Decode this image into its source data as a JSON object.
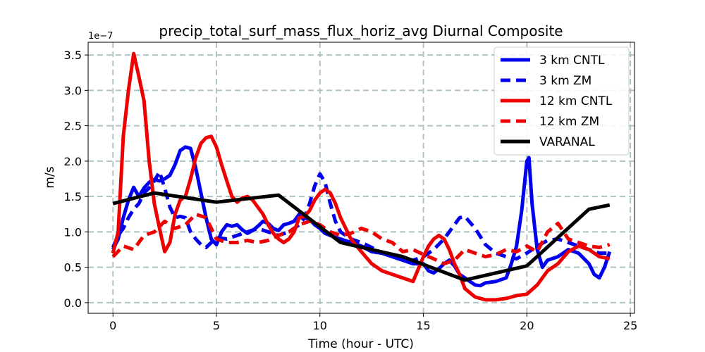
{
  "chart_data": {
    "type": "line",
    "title": "precip_total_surf_mass_flux_horiz_avg Diurnal Composite",
    "xlabel": "Time (hour - UTC)",
    "ylabel": "m/s",
    "y_offset_label": "1e−7",
    "xlim": [
      -1.2,
      25.2
    ],
    "ylim": [
      -0.15,
      3.68
    ],
    "x_ticks": [
      0,
      5,
      10,
      15,
      20,
      25
    ],
    "x_tick_labels": [
      "0",
      "5",
      "10",
      "15",
      "20",
      "25"
    ],
    "y_ticks": [
      0.0,
      0.5,
      1.0,
      1.5,
      2.0,
      2.5,
      3.0,
      3.5
    ],
    "y_tick_labels": [
      "0.0",
      "0.5",
      "1.0",
      "1.5",
      "2.0",
      "2.5",
      "3.0",
      "3.5"
    ],
    "grid": true,
    "legend_position": "top-right",
    "series": [
      {
        "name": "3 km CNTL",
        "color": "#0000ee",
        "dash": "solid",
        "x": [
          0,
          0.25,
          0.5,
          0.75,
          1,
          1.25,
          1.5,
          1.75,
          2,
          2.25,
          2.5,
          2.75,
          3,
          3.25,
          3.5,
          3.75,
          4,
          4.25,
          4.5,
          4.75,
          5,
          5.25,
          5.5,
          5.75,
          6,
          6.25,
          6.5,
          6.75,
          7,
          7.25,
          7.5,
          7.75,
          8,
          8.25,
          8.5,
          8.75,
          9,
          9.25,
          9.5,
          9.75,
          10,
          10.25,
          10.5,
          10.75,
          11,
          11.5,
          12,
          12.5,
          13,
          13.5,
          14,
          14.5,
          15,
          15.25,
          15.5,
          15.75,
          16,
          16.25,
          16.5,
          16.75,
          17,
          17.25,
          17.5,
          17.75,
          18,
          18.5,
          19,
          19.25,
          19.5,
          19.75,
          20,
          20.1,
          20.25,
          20.5,
          20.75,
          21,
          21.5,
          22,
          22.5,
          23,
          23.25,
          23.5,
          23.75,
          24
        ],
        "y": [
          0.75,
          0.9,
          1.2,
          1.45,
          1.63,
          1.5,
          1.62,
          1.7,
          1.74,
          1.72,
          1.75,
          1.8,
          1.95,
          2.15,
          2.2,
          2.18,
          1.9,
          1.55,
          1.2,
          0.9,
          0.82,
          1.0,
          1.1,
          1.08,
          1.1,
          1.03,
          0.98,
          1.02,
          1.08,
          1.15,
          1.12,
          1.05,
          1.02,
          1.1,
          1.12,
          1.15,
          1.25,
          1.2,
          1.18,
          1.1,
          1.05,
          0.98,
          0.95,
          0.92,
          0.9,
          0.85,
          0.8,
          0.72,
          0.7,
          0.65,
          0.6,
          0.55,
          0.55,
          0.45,
          0.42,
          0.48,
          0.55,
          0.6,
          0.52,
          0.4,
          0.35,
          0.3,
          0.25,
          0.24,
          0.28,
          0.3,
          0.35,
          0.55,
          0.8,
          1.3,
          2.0,
          2.05,
          1.4,
          0.75,
          0.5,
          0.6,
          0.65,
          0.75,
          0.7,
          0.55,
          0.4,
          0.35,
          0.5,
          0.72
        ]
      },
      {
        "name": "3 km ZM",
        "color": "#0000ee",
        "dash": "dashed",
        "x": [
          0,
          0.25,
          0.5,
          0.75,
          1,
          1.25,
          1.5,
          1.75,
          2,
          2.25,
          2.5,
          2.75,
          3,
          3.25,
          3.5,
          3.75,
          4,
          4.25,
          4.5,
          4.75,
          5,
          5.5,
          6,
          6.5,
          7,
          7.5,
          8,
          8.5,
          9,
          9.25,
          9.5,
          9.75,
          10,
          10.25,
          10.5,
          10.75,
          11,
          11.5,
          12,
          12.5,
          13,
          13.5,
          14,
          14.5,
          15,
          15.5,
          16,
          16.25,
          16.5,
          16.75,
          17,
          17.5,
          18,
          18.5,
          19,
          19.5,
          20,
          20.5,
          21,
          21.5,
          22,
          22.5,
          23,
          23.5,
          24
        ],
        "y": [
          0.78,
          0.95,
          1.05,
          1.2,
          1.32,
          1.4,
          1.55,
          1.62,
          1.72,
          1.85,
          1.62,
          1.35,
          1.2,
          1.22,
          1.2,
          1.0,
          0.9,
          0.82,
          0.78,
          0.85,
          0.92,
          0.9,
          0.95,
          1.0,
          1.05,
          1.0,
          0.95,
          1.0,
          1.1,
          1.2,
          1.4,
          1.65,
          1.82,
          1.7,
          1.4,
          1.15,
          1.0,
          0.9,
          0.85,
          0.78,
          0.7,
          0.65,
          0.62,
          0.6,
          0.65,
          0.75,
          0.9,
          1.0,
          1.1,
          1.2,
          1.22,
          1.05,
          0.82,
          0.7,
          0.65,
          0.62,
          0.7,
          0.8,
          0.88,
          0.9,
          0.85,
          0.8,
          0.75,
          0.7,
          0.7
        ]
      },
      {
        "name": "12 km CNTL",
        "color": "#ee0000",
        "dash": "solid",
        "x": [
          0,
          0.25,
          0.5,
          0.75,
          1,
          1.25,
          1.5,
          1.75,
          2,
          2.25,
          2.5,
          2.75,
          3,
          3.25,
          3.5,
          3.75,
          4,
          4.25,
          4.5,
          4.75,
          5,
          5.25,
          5.5,
          5.75,
          6,
          6.25,
          6.5,
          6.75,
          7,
          7.25,
          7.5,
          7.75,
          8,
          8.25,
          8.5,
          8.75,
          9,
          9.25,
          9.5,
          9.75,
          10,
          10.25,
          10.5,
          10.75,
          11,
          11.5,
          12,
          12.5,
          13,
          13.5,
          14,
          14.5,
          15,
          15.25,
          15.5,
          15.75,
          16,
          16.25,
          16.5,
          16.75,
          17,
          17.5,
          18,
          18.5,
          19,
          19.5,
          20,
          20.5,
          21,
          21.5,
          22,
          22.5,
          23,
          23.5,
          24
        ],
        "y": [
          0.7,
          1.0,
          2.35,
          3.0,
          3.52,
          3.2,
          2.85,
          2.0,
          1.4,
          1.05,
          0.72,
          0.85,
          1.25,
          1.45,
          1.5,
          1.75,
          2.05,
          2.25,
          2.33,
          2.35,
          2.2,
          1.95,
          1.72,
          1.5,
          1.42,
          1.48,
          1.5,
          1.45,
          1.35,
          1.25,
          1.1,
          0.98,
          0.9,
          0.85,
          0.9,
          1.0,
          1.2,
          1.22,
          1.3,
          1.45,
          1.55,
          1.6,
          1.55,
          1.4,
          1.2,
          0.9,
          0.72,
          0.55,
          0.45,
          0.4,
          0.35,
          0.3,
          0.65,
          0.8,
          0.9,
          0.95,
          0.9,
          0.75,
          0.55,
          0.4,
          0.2,
          0.08,
          0.04,
          0.04,
          0.06,
          0.1,
          0.12,
          0.25,
          0.45,
          0.55,
          0.72,
          0.8,
          0.75,
          0.65,
          0.62
        ]
      },
      {
        "name": "12 km ZM",
        "color": "#ee0000",
        "dash": "dashed",
        "x": [
          0,
          0.5,
          1,
          1.5,
          2,
          2.5,
          3,
          3.5,
          4,
          4.5,
          5,
          5.5,
          6,
          6.5,
          7,
          7.5,
          8,
          8.5,
          9,
          9.5,
          10,
          10.5,
          11,
          11.5,
          12,
          12.5,
          13,
          13.5,
          14,
          14.5,
          15,
          15.5,
          16,
          16.5,
          17,
          17.5,
          18,
          18.5,
          19,
          19.5,
          20,
          20.5,
          21,
          21.5,
          22,
          22.5,
          23,
          23.5,
          24
        ],
        "y": [
          0.65,
          0.8,
          0.75,
          0.95,
          1.0,
          1.15,
          1.05,
          1.1,
          1.25,
          1.2,
          0.9,
          0.85,
          0.85,
          0.88,
          0.85,
          0.88,
          0.95,
          1.0,
          1.1,
          1.15,
          1.1,
          1.0,
          0.95,
          0.98,
          1.05,
          1.0,
          0.9,
          0.85,
          0.72,
          0.75,
          0.68,
          0.62,
          0.55,
          0.6,
          0.75,
          0.7,
          0.65,
          0.68,
          0.75,
          0.72,
          0.8,
          0.72,
          1.0,
          1.12,
          0.9,
          0.85,
          0.8,
          0.78,
          0.82
        ]
      },
      {
        "name": "VARANAL",
        "color": "#000000",
        "dash": "solid",
        "x": [
          0,
          2,
          5,
          8,
          11,
          14,
          17,
          20,
          23,
          24
        ],
        "y": [
          1.4,
          1.55,
          1.42,
          1.52,
          0.85,
          0.65,
          0.32,
          0.52,
          1.32,
          1.38
        ]
      }
    ]
  }
}
